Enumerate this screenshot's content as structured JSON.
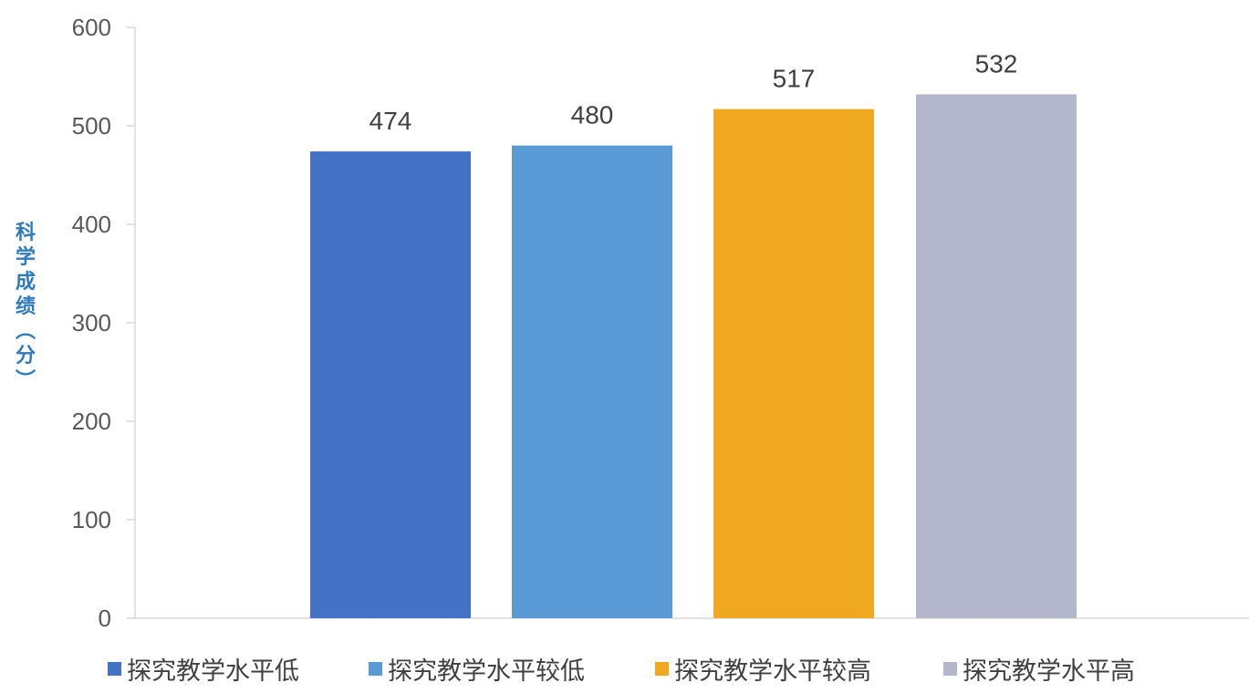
{
  "chart_data": {
    "type": "bar",
    "categories": [
      "探究教学水平低",
      "探究教学水平较低",
      "探究教学水平较高",
      "探究教学水平高"
    ],
    "values": [
      474,
      480,
      517,
      532
    ],
    "data_labels": [
      "474",
      "480",
      "517",
      "532"
    ],
    "title": "",
    "xlabel": "",
    "ylabel": "科学成绩（分）",
    "ylim": [
      0,
      600
    ],
    "yticks": [
      "0",
      "100",
      "200",
      "300",
      "400",
      "500",
      "600"
    ],
    "colors": [
      "#4472c4",
      "#5b9bd5",
      "#f0a820",
      "#b4b6cc"
    ],
    "ylabel_color": "#2e7bbd",
    "grid": false,
    "legend": {
      "position": "bottom",
      "entries": [
        "探究教学水平低",
        "探究教学水平较低",
        "探究教学水平较高",
        "探究教学水平高"
      ]
    }
  }
}
